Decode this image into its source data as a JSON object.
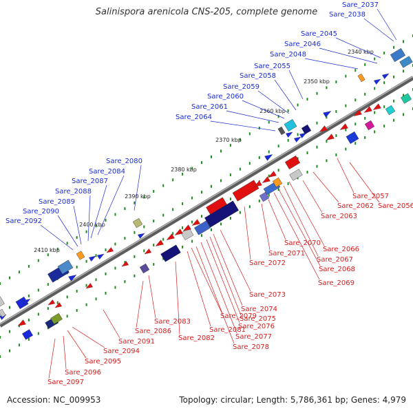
{
  "title": "Salinispora arenicola CNS-205, complete genome",
  "footer": {
    "accession": "Accession: NC_009953",
    "info": "Topology: circular; Length: 5,786,361 bp; Genes: 4,979"
  },
  "colors": {
    "backbone": "#6e6e6e",
    "top_label": "#1a2bd6",
    "bottom_label": "#d71a1a",
    "tick": "#1c8a1c"
  },
  "kbp_labels": [
    "2340 kbp",
    "2350 kbp",
    "2360 kbp",
    "2370 kbp",
    "2380 kbp",
    "2390 kbp",
    "2400 kbp",
    "2410 kbp"
  ],
  "top_genes": [
    "Sare_2037",
    "Sare_2038",
    "Sare_2045",
    "Sare_2046",
    "Sare_2048",
    "Sare_2055",
    "Sare_2058",
    "Sare_2059",
    "Sare_2060",
    "Sare_2061",
    "Sare_2064",
    "Sare_2080",
    "Sare_2084",
    "Sare_2087",
    "Sare_2088",
    "Sare_2089",
    "Sare_2090",
    "Sare_2092"
  ],
  "bottom_genes": [
    "Sare_2057",
    "Sare_2056",
    "Sare_2062",
    "Sare_2063",
    "Sare_2066",
    "Sare_2067",
    "Sare_2068",
    "Sare_2069",
    "Sare_2070",
    "Sare_2071",
    "Sare_2072",
    "Sare_2073",
    "Sare_2074",
    "Sare_2075",
    "Sare_2076",
    "Sare_2077",
    "Sare_2078",
    "Sare_2079",
    "Sare_2081",
    "Sare_2082",
    "Sare_2083",
    "Sare_2086",
    "Sare_2091",
    "Sare_2094",
    "Sare_2095",
    "Sare_2096",
    "Sare_2097"
  ]
}
